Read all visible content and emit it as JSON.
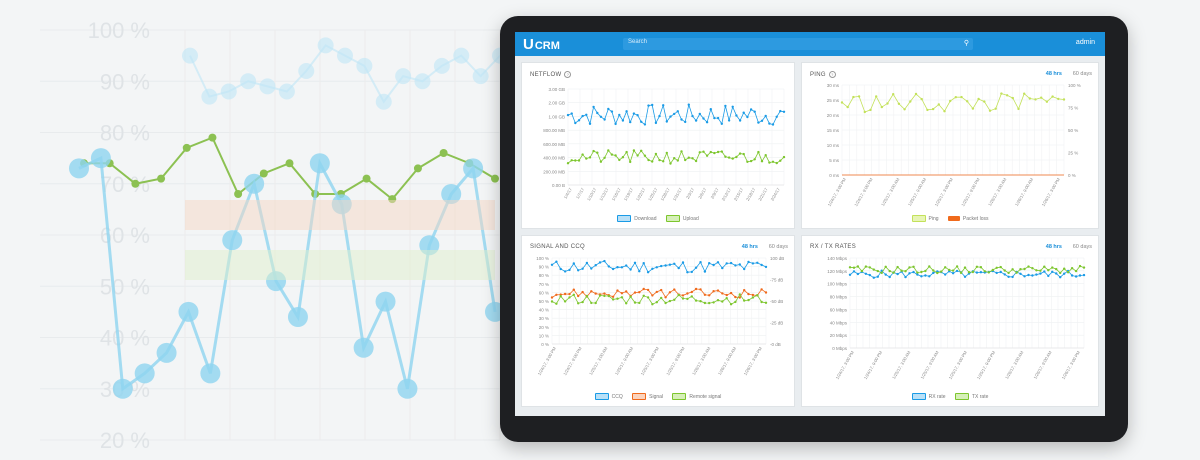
{
  "header": {
    "logo_text": "CRM",
    "search_placeholder": "Search",
    "user": "admin"
  },
  "background_chart": {
    "y_tick_labels": [
      "100 %",
      "90 %",
      "80 %",
      "70 %",
      "60 %",
      "50 %",
      "40 %",
      "30 %",
      "20 %"
    ],
    "series": [
      {
        "color": "#bfe6f7",
        "values": [
          95,
          87,
          88,
          90,
          89,
          88,
          92,
          97,
          95,
          93,
          86,
          91,
          90,
          93,
          95,
          91,
          95
        ]
      },
      {
        "color": "#8cc152",
        "values": [
          74,
          74,
          70,
          71,
          77,
          79,
          68,
          72,
          74,
          68,
          68,
          71,
          67,
          73,
          76,
          74,
          71
        ]
      },
      {
        "color": "#8fd4f0",
        "values": [
          73,
          75,
          30,
          33,
          37,
          45,
          33,
          59,
          70,
          51,
          44,
          74,
          66,
          38,
          47,
          30,
          58,
          68,
          73,
          45
        ]
      }
    ]
  },
  "netflow": {
    "title": "NETFLOW",
    "y_ticks": [
      "3.00 GB",
      "2.00 GB",
      "1.00 GB",
      "800.00 MB",
      "600.00 MB",
      "400.00 MB",
      "200.00 MB",
      "0.00 B"
    ],
    "x_ticks": [
      "1/4/17",
      "1/7/17",
      "1/10/17",
      "1/13/17",
      "1/16/17",
      "1/19/17",
      "1/22/17",
      "1/25/17",
      "1/28/17",
      "1/31/17",
      "2/3/17",
      "2/6/17",
      "2/9/17",
      "2/12/17",
      "2/15/17",
      "2/18/17",
      "2/21/17",
      "2/24/17"
    ],
    "legend": [
      "Download",
      "Upload"
    ],
    "colors": [
      "#1a9be6",
      "#7dc62e"
    ]
  },
  "ping": {
    "title": "PING",
    "range_active": "48 hrs",
    "range_other": "60 days",
    "y_left": [
      "20 ms",
      "15 ms",
      "10 ms",
      "5 ms",
      "0 ms"
    ],
    "y_right": [
      "100 %",
      "75 %",
      "50 %",
      "25 %",
      "0 %"
    ],
    "y_left_full": [
      "30 ms",
      "25 ms",
      "20 ms",
      "15 ms",
      "10 ms",
      "5 ms",
      "0 ms"
    ],
    "x_ticks": [
      "1/24/17, 3:00 PM",
      "1/24/17, 9:00 PM",
      "1/25/17, 3:00 AM",
      "1/25/17, 9:00 AM",
      "1/25/17, 3:00 PM",
      "1/25/17, 9:00 PM",
      "1/26/17, 3:00 AM",
      "1/26/17, 9:00 AM",
      "1/26/17, 3:00 PM"
    ],
    "legend": [
      "Ping",
      "Packet loss"
    ],
    "colors": [
      "#c3e15a",
      "#f06a1c"
    ]
  },
  "signal": {
    "title": "SIGNAL AND CCQ",
    "range_active": "48 hrs",
    "range_other": "60 days",
    "y_left": [
      "100 %",
      "90 %",
      "80 %",
      "70 %",
      "60 %",
      "50 %",
      "40 %",
      "30 %",
      "20 %",
      "10 %",
      "0 %"
    ],
    "y_right": [
      "100 dB",
      "-75 dB",
      "-50 dB",
      "-25 dB",
      "-0 dB"
    ],
    "x_ticks": [
      "1/24/17, 3:00 PM",
      "1/24/17, 9:00 PM",
      "1/25/17, 3:00 AM",
      "1/25/17, 9:00 AM",
      "1/25/17, 3:00 PM",
      "1/25/17, 9:00 PM",
      "1/26/17, 3:00 AM",
      "1/26/17, 9:00 AM",
      "1/26/17, 3:00 PM"
    ],
    "legend": [
      "CCQ",
      "Signal",
      "Remote signal"
    ],
    "colors": [
      "#1a9be6",
      "#f06a1c",
      "#7dc62e"
    ]
  },
  "rxtx": {
    "title": "RX / TX RATES",
    "range_active": "48 hrs",
    "range_other": "60 days",
    "y_left": [
      "140 Mbps",
      "120 Mbps",
      "100 Mbps",
      "80 Mbps",
      "60 Mbps",
      "40 Mbps",
      "20 Mbps",
      "0 Mbps"
    ],
    "x_ticks": [
      "1/24/17, 3:00 PM",
      "1/24/17, 9:00 PM",
      "1/25/17, 3:00 AM",
      "1/25/17, 9:00 AM",
      "1/25/17, 3:00 PM",
      "1/25/17, 9:00 PM",
      "1/26/17, 3:00 AM",
      "1/26/17, 9:00 AM",
      "1/26/17, 3:00 PM"
    ],
    "legend": [
      "RX rate",
      "TX rate"
    ],
    "colors": [
      "#1a9be6",
      "#7dc62e"
    ]
  }
}
